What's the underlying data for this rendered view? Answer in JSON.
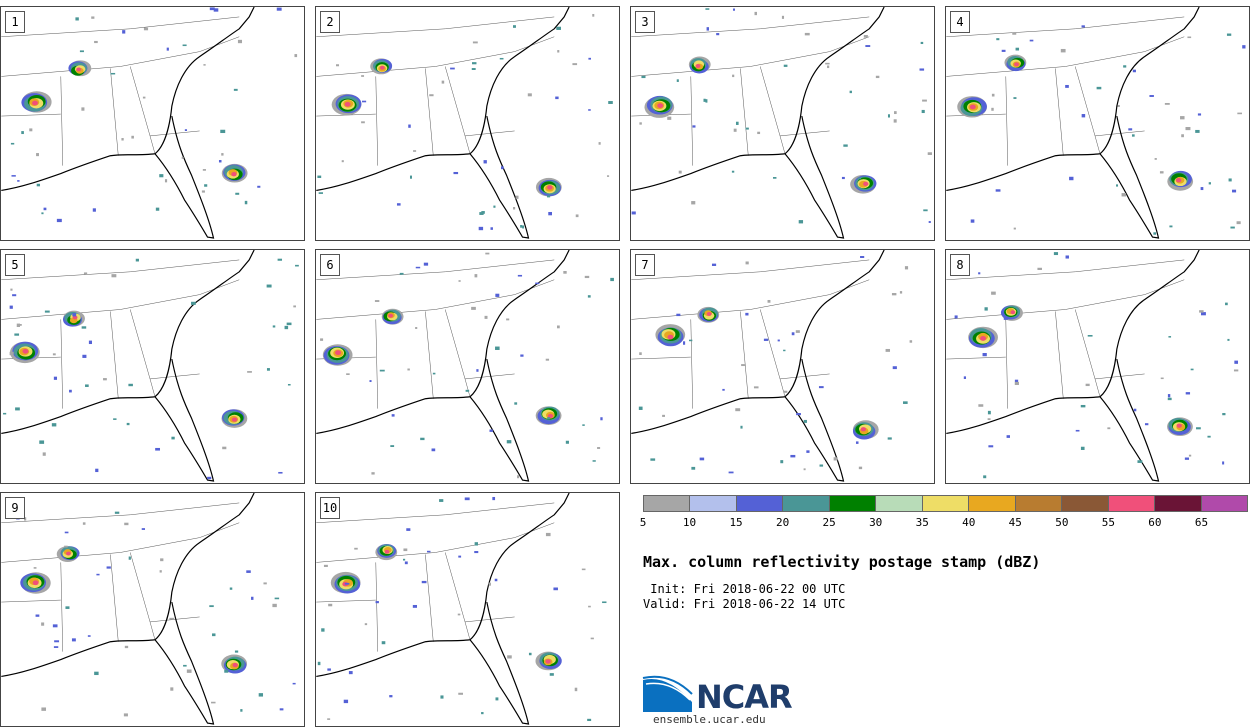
{
  "panels": [
    {
      "label": "1"
    },
    {
      "label": "2"
    },
    {
      "label": "3"
    },
    {
      "label": "4"
    },
    {
      "label": "5"
    },
    {
      "label": "6"
    },
    {
      "label": "7"
    },
    {
      "label": "8"
    },
    {
      "label": "9"
    },
    {
      "label": "10"
    }
  ],
  "colorbar": {
    "ticks": [
      "5",
      "10",
      "15",
      "20",
      "25",
      "30",
      "35",
      "40",
      "45",
      "50",
      "55",
      "60",
      "65"
    ],
    "colors": [
      "#a6a6a6",
      "#b3c0ec",
      "#5461d6",
      "#4a9696",
      "#008000",
      "#b8dcb8",
      "#eedd66",
      "#e8a820",
      "#b87c30",
      "#8a5836",
      "#f0507a",
      "#6a1436",
      "#b04aaa"
    ]
  },
  "title": "Max. column reflectivity postage stamp (dBZ)",
  "init": " Init: Fri 2018-06-22 00 UTC",
  "valid": "Valid: Fri 2018-06-22 14 UTC",
  "logo": {
    "text": "NCAR",
    "url": "ensemble.ucar.edu"
  }
}
